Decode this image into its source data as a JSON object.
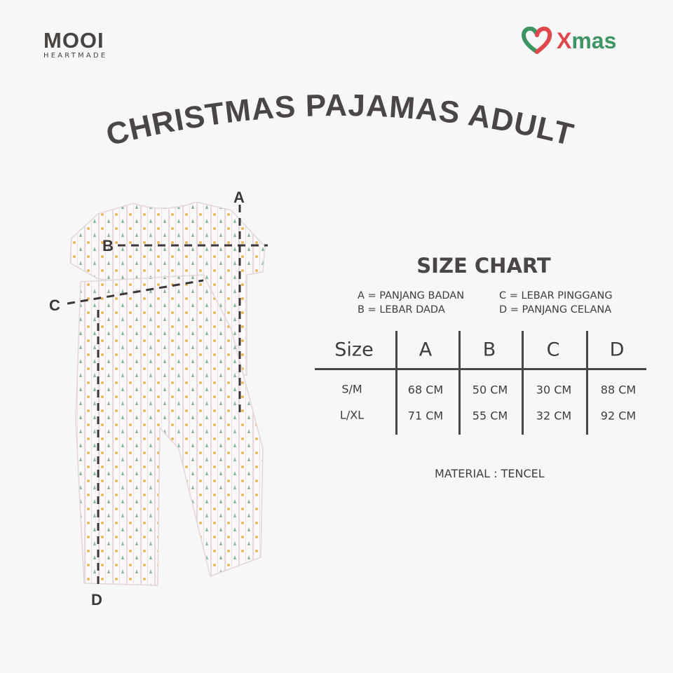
{
  "brand": {
    "name": "MOOI",
    "tagline": "HEARTMADE"
  },
  "campaign_logo": {
    "word": "Xmas",
    "icon": "heart-icon",
    "colors": {
      "green": "#3e9462",
      "red": "#e0474c"
    }
  },
  "title": "CHRISTMAS PAJAMAS ADULT",
  "diagram_labels": {
    "a": "A",
    "b": "B",
    "c": "C",
    "d": "D"
  },
  "size_chart": {
    "title": "SIZE CHART",
    "legend": {
      "a": "A = PANJANG BADAN",
      "b": "B = LEBAR DADA",
      "c": "C = LEBAR PINGGANG",
      "d": "D = PANJANG CELANA"
    },
    "headers": [
      "Size",
      "A",
      "B",
      "C",
      "D"
    ],
    "rows": [
      [
        "S/M",
        "68 CM",
        "50 CM",
        "30 CM",
        "88 CM"
      ],
      [
        "L/XL",
        "71 CM",
        "55 CM",
        "32 CM",
        "92 CM"
      ]
    ],
    "material": "MATERIAL : TENCEL"
  },
  "colors": {
    "text": "#3f3c3b",
    "background": "#f8f7f7"
  }
}
